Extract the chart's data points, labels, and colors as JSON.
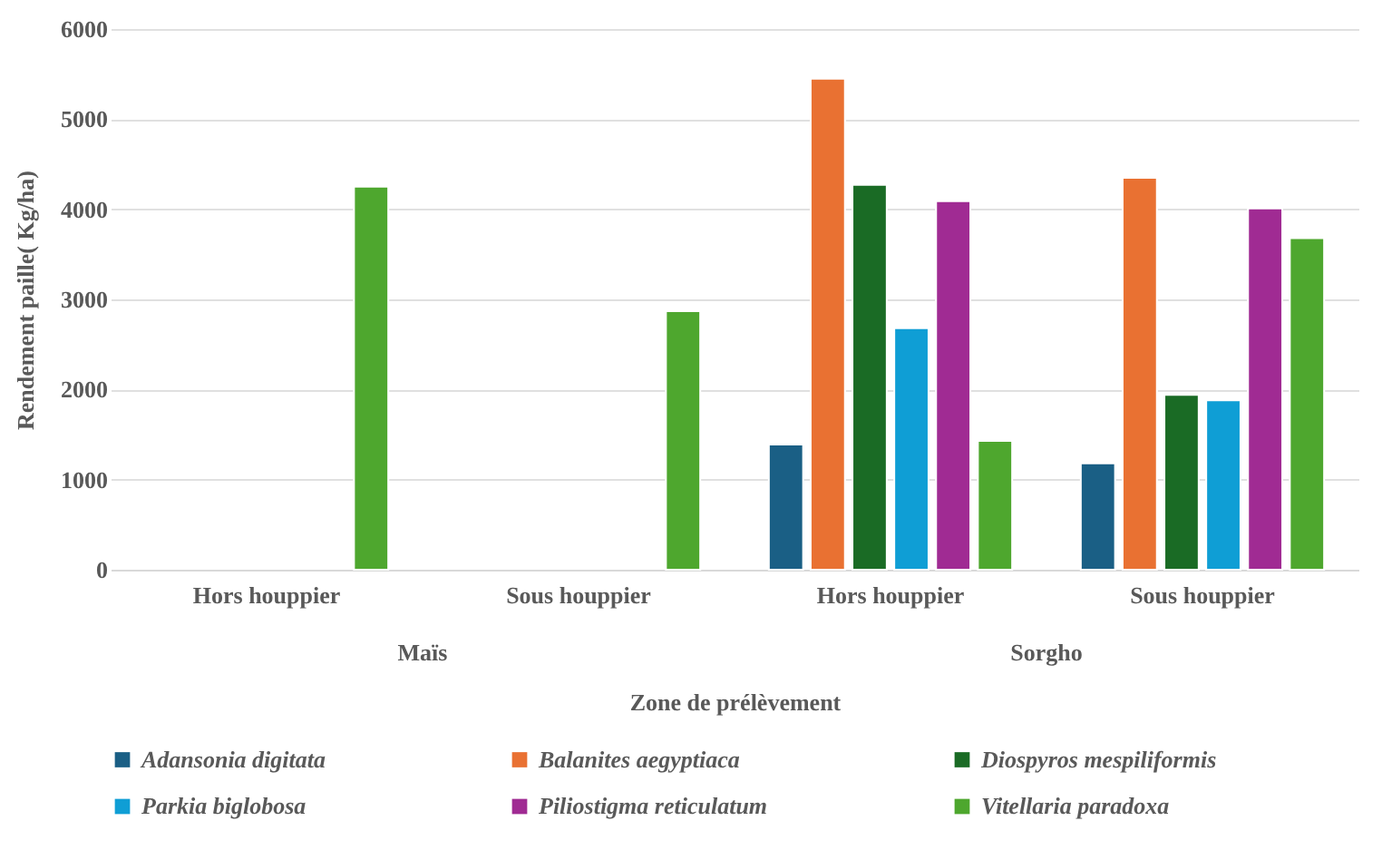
{
  "chart_data": {
    "type": "bar",
    "xlabel": "Zone de prélèvement",
    "ylabel": "Rendement paille( Kg/ha)",
    "categories": [
      "Hors houppier",
      "Sous houppier",
      "Hors houppier",
      "Sous houppier"
    ],
    "annotations": [
      "Maïs",
      "Sorgho"
    ],
    "series": [
      {
        "name": "Adansonia digitata",
        "color": "#1a5f85",
        "values": [
          null,
          null,
          1390,
          1180
        ]
      },
      {
        "name": "Balanites aegyptiaca",
        "color": "#e97132",
        "values": [
          null,
          null,
          5450,
          4350
        ]
      },
      {
        "name": "Diospyros mespiliformis",
        "color": "#1a6b25",
        "values": [
          null,
          null,
          4270,
          1940
        ]
      },
      {
        "name": "Parkia biglobosa",
        "color": "#0f9ed5",
        "values": [
          null,
          null,
          2680,
          1880
        ]
      },
      {
        "name": "Piliostigma reticulatum",
        "color": "#a02b93",
        "values": [
          null,
          null,
          4090,
          4010
        ]
      },
      {
        "name": "Vitellaria paradoxa",
        "color": "#4ea72e",
        "values": [
          4250,
          2870,
          1430,
          3680
        ]
      }
    ],
    "ylim": [
      0,
      6000
    ],
    "yticks": [
      0,
      1000,
      2000,
      3000,
      4000,
      5000,
      6000
    ],
    "grid": "y",
    "legend": "bottom"
  }
}
